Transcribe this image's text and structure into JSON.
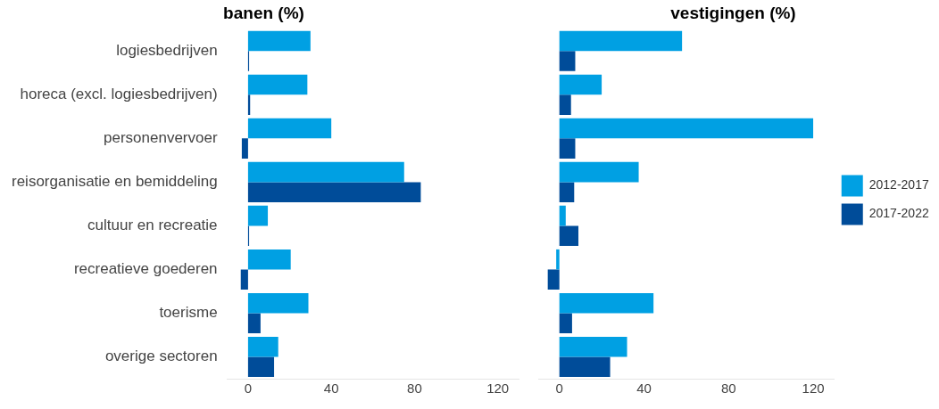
{
  "chart_data": [
    {
      "type": "bar",
      "orientation": "horizontal",
      "title": "banen (%)",
      "categories": [
        "logiesbedrijven",
        "horeca (excl. logiesbedrijven)",
        "personenvervoer",
        "reisorganisatie en bemiddeling",
        "cultuur en recreatie",
        "recreatieve goederen",
        "toerisme",
        "overige sectoren"
      ],
      "series": [
        {
          "color": "#00a0e3",
          "values": [
            30,
            28.5,
            40,
            75,
            9.5,
            20.5,
            29,
            14.5
          ]
        },
        {
          "color": "#004c99",
          "values": [
            0.5,
            1,
            -3,
            83,
            0.5,
            -3.5,
            6,
            12.5
          ]
        }
      ],
      "xlim": [
        -10,
        130
      ],
      "xticks": [
        0,
        40,
        80,
        120
      ],
      "grid": false,
      "legend": false
    },
    {
      "type": "bar",
      "orientation": "horizontal",
      "title": "vestigingen (%)",
      "categories": [
        null,
        null,
        null,
        null,
        null,
        null,
        null,
        null
      ],
      "series": [
        {
          "name": "2012-2017",
          "color": "#00a0e3",
          "values": [
            58,
            20,
            120,
            37.5,
            3,
            -1.5,
            44.5,
            32
          ]
        },
        {
          "name": "2017-2022",
          "color": "#004c99",
          "values": [
            7.5,
            5.5,
            7.5,
            7,
            9,
            -5.5,
            6,
            24
          ]
        }
      ],
      "xlim": [
        -10,
        130
      ],
      "xticks": [
        0,
        40,
        80,
        120
      ],
      "grid": false,
      "legend": "right",
      "tick_labels": "x"
    }
  ]
}
